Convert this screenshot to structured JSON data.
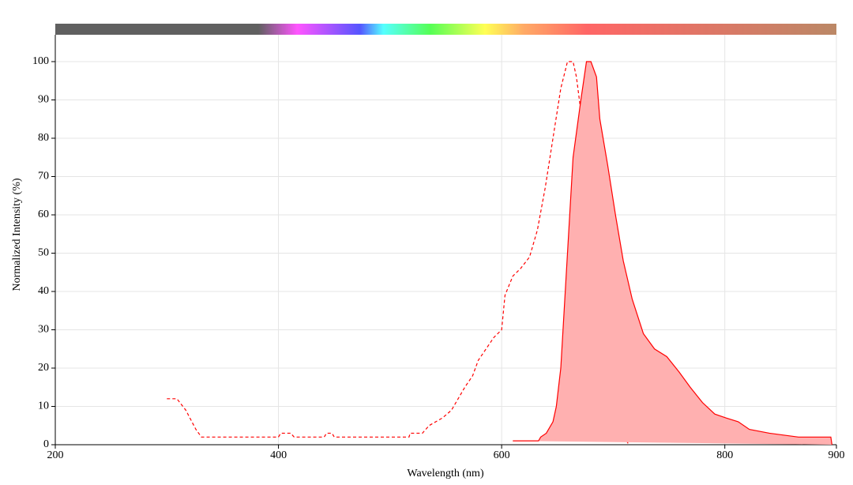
{
  "chart_data": {
    "type": "line",
    "xlabel": "Wavelength (nm)",
    "ylabel": "Normalized Intensity (%)",
    "xlim": [
      200,
      900
    ],
    "ylim": [
      0,
      100
    ],
    "xticks": [
      200,
      400,
      600,
      800,
      900
    ],
    "yticks": [
      0,
      10,
      20,
      30,
      40,
      50,
      60,
      70,
      80,
      90,
      100
    ],
    "grid": true,
    "series": [
      {
        "color": "#ff0000",
        "dashed": true,
        "filled": false,
        "x": [
          300,
          309,
          317,
          326,
          331,
          400,
          402,
          411,
          414,
          441,
          443,
          448,
          450,
          517,
          518,
          529,
          535,
          547,
          555,
          561,
          567,
          574,
          579,
          586,
          593,
          600,
          603,
          610,
          617,
          625,
          632,
          639,
          646,
          653,
          659,
          664,
          667,
          671,
          676,
          681,
          686,
          692,
          699,
          706,
          712,
          714
        ],
        "values": [
          12,
          12,
          9,
          4,
          2,
          2,
          3,
          3,
          2,
          2,
          3,
          3,
          2,
          2,
          3,
          3,
          5,
          7,
          9,
          12,
          15,
          18,
          22,
          25,
          28,
          30,
          39,
          44,
          46,
          49,
          56,
          67,
          80,
          93,
          100,
          100,
          96,
          87,
          64,
          38,
          21,
          9,
          5,
          3,
          1,
          0
        ]
      },
      {
        "color": "#ff0000",
        "dashed": false,
        "filled": true,
        "fill": "#ffb0b0",
        "x": [
          610,
          633,
          635,
          640,
          646,
          649,
          653,
          656,
          660,
          664,
          671,
          676,
          680,
          685,
          688,
          695,
          702,
          709,
          717,
          727,
          737,
          748,
          759,
          769,
          780,
          791,
          801,
          812,
          822,
          840,
          866,
          895,
          896
        ],
        "values": [
          1,
          1,
          2,
          3,
          6,
          10,
          20,
          35,
          55,
          75,
          90,
          100,
          100,
          96,
          85,
          73,
          60,
          48,
          38,
          29,
          25,
          23,
          19,
          15,
          11,
          8,
          7,
          6,
          4,
          3,
          2,
          2,
          0
        ]
      }
    ]
  }
}
